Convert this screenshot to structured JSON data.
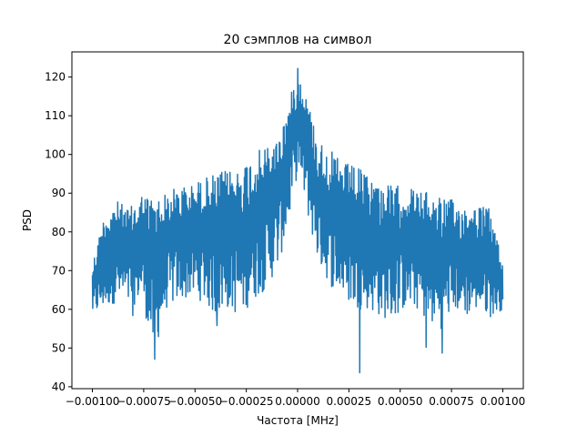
{
  "chart_data": {
    "type": "line",
    "title": "20 сэмплов на символ",
    "xlabel": "Частота [MHz]",
    "ylabel": "PSD",
    "xlim": [
      -0.0011,
      0.0011
    ],
    "ylim": [
      39.5,
      126.5
    ],
    "x_ticks": [
      -0.001,
      -0.00075,
      -0.0005,
      -0.00025,
      0.0,
      0.00025,
      0.0005,
      0.00075,
      0.001
    ],
    "x_tick_labels": [
      "−0.00100",
      "−0.00075",
      "−0.00050",
      "−0.00025",
      "0.00000",
      "0.00025",
      "0.00050",
      "0.00075",
      "0.00100"
    ],
    "y_ticks": [
      40,
      50,
      60,
      70,
      80,
      90,
      100,
      110,
      120
    ],
    "y_tick_labels": [
      "40",
      "50",
      "60",
      "70",
      "80",
      "90",
      "100",
      "110",
      "120"
    ],
    "grid": false,
    "legend": "none",
    "series": [
      {
        "color": "#1f77b4",
        "envelope": [
          {
            "x": -0.001,
            "lo": 58,
            "hi": 72
          },
          {
            "x": -0.00094,
            "lo": 60,
            "hi": 85
          },
          {
            "x": -0.00088,
            "lo": 62,
            "hi": 88
          },
          {
            "x": -0.00082,
            "lo": 60,
            "hi": 86
          },
          {
            "x": -0.00076,
            "lo": 63,
            "hi": 90
          },
          {
            "x": -0.0007,
            "lo": 48,
            "hi": 89
          },
          {
            "x": -0.00064,
            "lo": 60,
            "hi": 90
          },
          {
            "x": -0.00058,
            "lo": 62,
            "hi": 92
          },
          {
            "x": -0.00052,
            "lo": 63,
            "hi": 92
          },
          {
            "x": -0.00046,
            "lo": 62,
            "hi": 94
          },
          {
            "x": -0.0004,
            "lo": 58,
            "hi": 95
          },
          {
            "x": -0.00034,
            "lo": 60,
            "hi": 96
          },
          {
            "x": -0.00028,
            "lo": 58,
            "hi": 97
          },
          {
            "x": -0.00022,
            "lo": 62,
            "hi": 100
          },
          {
            "x": -0.00016,
            "lo": 65,
            "hi": 102
          },
          {
            "x": -0.0001,
            "lo": 70,
            "hi": 104
          },
          {
            "x": -5e-05,
            "lo": 80,
            "hi": 112
          },
          {
            "x": -2e-05,
            "lo": 90,
            "hi": 118
          },
          {
            "x": 0.0,
            "lo": 95,
            "hi": 122
          },
          {
            "x": 2e-05,
            "lo": 92,
            "hi": 119
          },
          {
            "x": 5e-05,
            "lo": 84,
            "hi": 114
          },
          {
            "x": 0.0001,
            "lo": 72,
            "hi": 104
          },
          {
            "x": 0.00016,
            "lo": 66,
            "hi": 101
          },
          {
            "x": 0.00022,
            "lo": 63,
            "hi": 98
          },
          {
            "x": 0.00028,
            "lo": 60,
            "hi": 97
          },
          {
            "x": 0.00034,
            "lo": 60,
            "hi": 95
          },
          {
            "x": 0.0004,
            "lo": 58,
            "hi": 93
          },
          {
            "x": 0.00046,
            "lo": 57,
            "hi": 92
          },
          {
            "x": 0.00052,
            "lo": 60,
            "hi": 92
          },
          {
            "x": 0.00058,
            "lo": 60,
            "hi": 91
          },
          {
            "x": 0.00064,
            "lo": 56,
            "hi": 90
          },
          {
            "x": 0.0007,
            "lo": 55,
            "hi": 90
          },
          {
            "x": 0.00076,
            "lo": 60,
            "hi": 88
          },
          {
            "x": 0.00082,
            "lo": 58,
            "hi": 87
          },
          {
            "x": 0.00088,
            "lo": 60,
            "hi": 87
          },
          {
            "x": 0.00094,
            "lo": 58,
            "hi": 86
          },
          {
            "x": 0.001,
            "lo": 60,
            "hi": 72
          }
        ],
        "notable_points": [
          {
            "x": 0.0,
            "y": 122.2
          },
          {
            "x": -0.000696,
            "y": 47.1
          },
          {
            "x": 0.000303,
            "y": 43.6
          },
          {
            "x": 0.000626,
            "y": 50.2
          },
          {
            "x": 0.000705,
            "y": 48.7
          },
          {
            "x": -0.000393,
            "y": 55.8
          },
          {
            "x": -0.000803,
            "y": 58.4
          }
        ]
      }
    ]
  }
}
